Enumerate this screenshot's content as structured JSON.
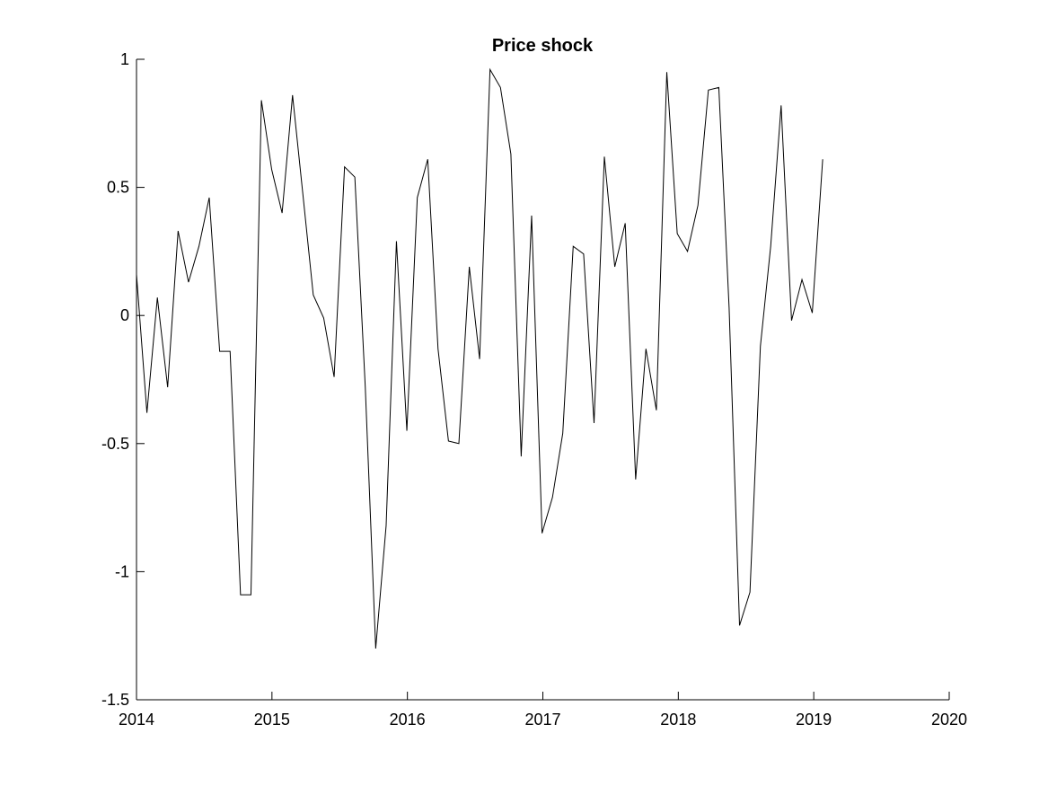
{
  "chart_data": {
    "type": "line",
    "title": "Price shock",
    "xlabel": "",
    "ylabel": "",
    "xlim": [
      2014,
      2020
    ],
    "ylim": [
      -1.5,
      1
    ],
    "x_ticks": [
      2014,
      2015,
      2016,
      2017,
      2018,
      2019,
      2020
    ],
    "y_ticks": [
      1,
      0.5,
      0,
      -0.5,
      -1,
      -1.5
    ],
    "x_tick_labels": [
      "2014",
      "2015",
      "2016",
      "2017",
      "2018",
      "2019",
      "2020"
    ],
    "y_tick_labels": [
      "1",
      "0.5",
      "0",
      "-0.5",
      "-1",
      "-1.5"
    ],
    "grid": false,
    "line_color": "#000000",
    "series": [
      {
        "x": [
          2014.0,
          2014.077,
          2014.154,
          2014.23,
          2014.307,
          2014.384,
          2014.461,
          2014.537,
          2014.614,
          2014.691,
          2014.768,
          2014.845,
          2014.922,
          2014.998,
          2015.075,
          2015.152,
          2015.229,
          2015.305,
          2015.382,
          2015.459,
          2015.536,
          2015.612,
          2015.689,
          2015.766,
          2015.843,
          2015.919,
          2015.996,
          2016.073,
          2016.15,
          2016.226,
          2016.303,
          2016.38,
          2016.457,
          2016.533,
          2016.61,
          2016.687,
          2016.764,
          2016.84,
          2016.917,
          2016.994,
          2017.071,
          2017.147,
          2017.224,
          2017.301,
          2017.378,
          2017.454,
          2017.531,
          2017.608,
          2017.685,
          2017.761,
          2017.838,
          2017.915,
          2017.992,
          2018.068,
          2018.145,
          2018.222,
          2018.299,
          2018.375,
          2018.452,
          2018.529,
          2018.606,
          2018.682,
          2018.759,
          2018.836,
          2018.913,
          2018.989,
          2019.066
        ],
        "values": [
          0.16,
          -0.38,
          0.07,
          -0.28,
          0.33,
          0.13,
          0.27,
          0.46,
          -0.14,
          -0.14,
          -1.09,
          -1.09,
          0.84,
          0.57,
          0.4,
          0.86,
          0.47,
          0.08,
          -0.01,
          -0.24,
          0.58,
          0.54,
          -0.28,
          -1.3,
          -0.82,
          0.29,
          -0.45,
          0.46,
          0.61,
          -0.13,
          -0.49,
          -0.5,
          0.19,
          -0.17,
          0.96,
          0.89,
          0.63,
          -0.55,
          0.39,
          -0.85,
          -0.71,
          -0.46,
          0.27,
          0.24,
          -0.42,
          0.62,
          0.19,
          0.36,
          -0.64,
          -0.13,
          -0.37,
          0.95,
          0.32,
          0.25,
          0.43,
          0.88,
          0.89,
          0.03,
          -1.21,
          -1.08,
          -0.12,
          0.27,
          0.82,
          -0.02,
          0.14,
          0.01,
          0.61
        ]
      }
    ]
  }
}
